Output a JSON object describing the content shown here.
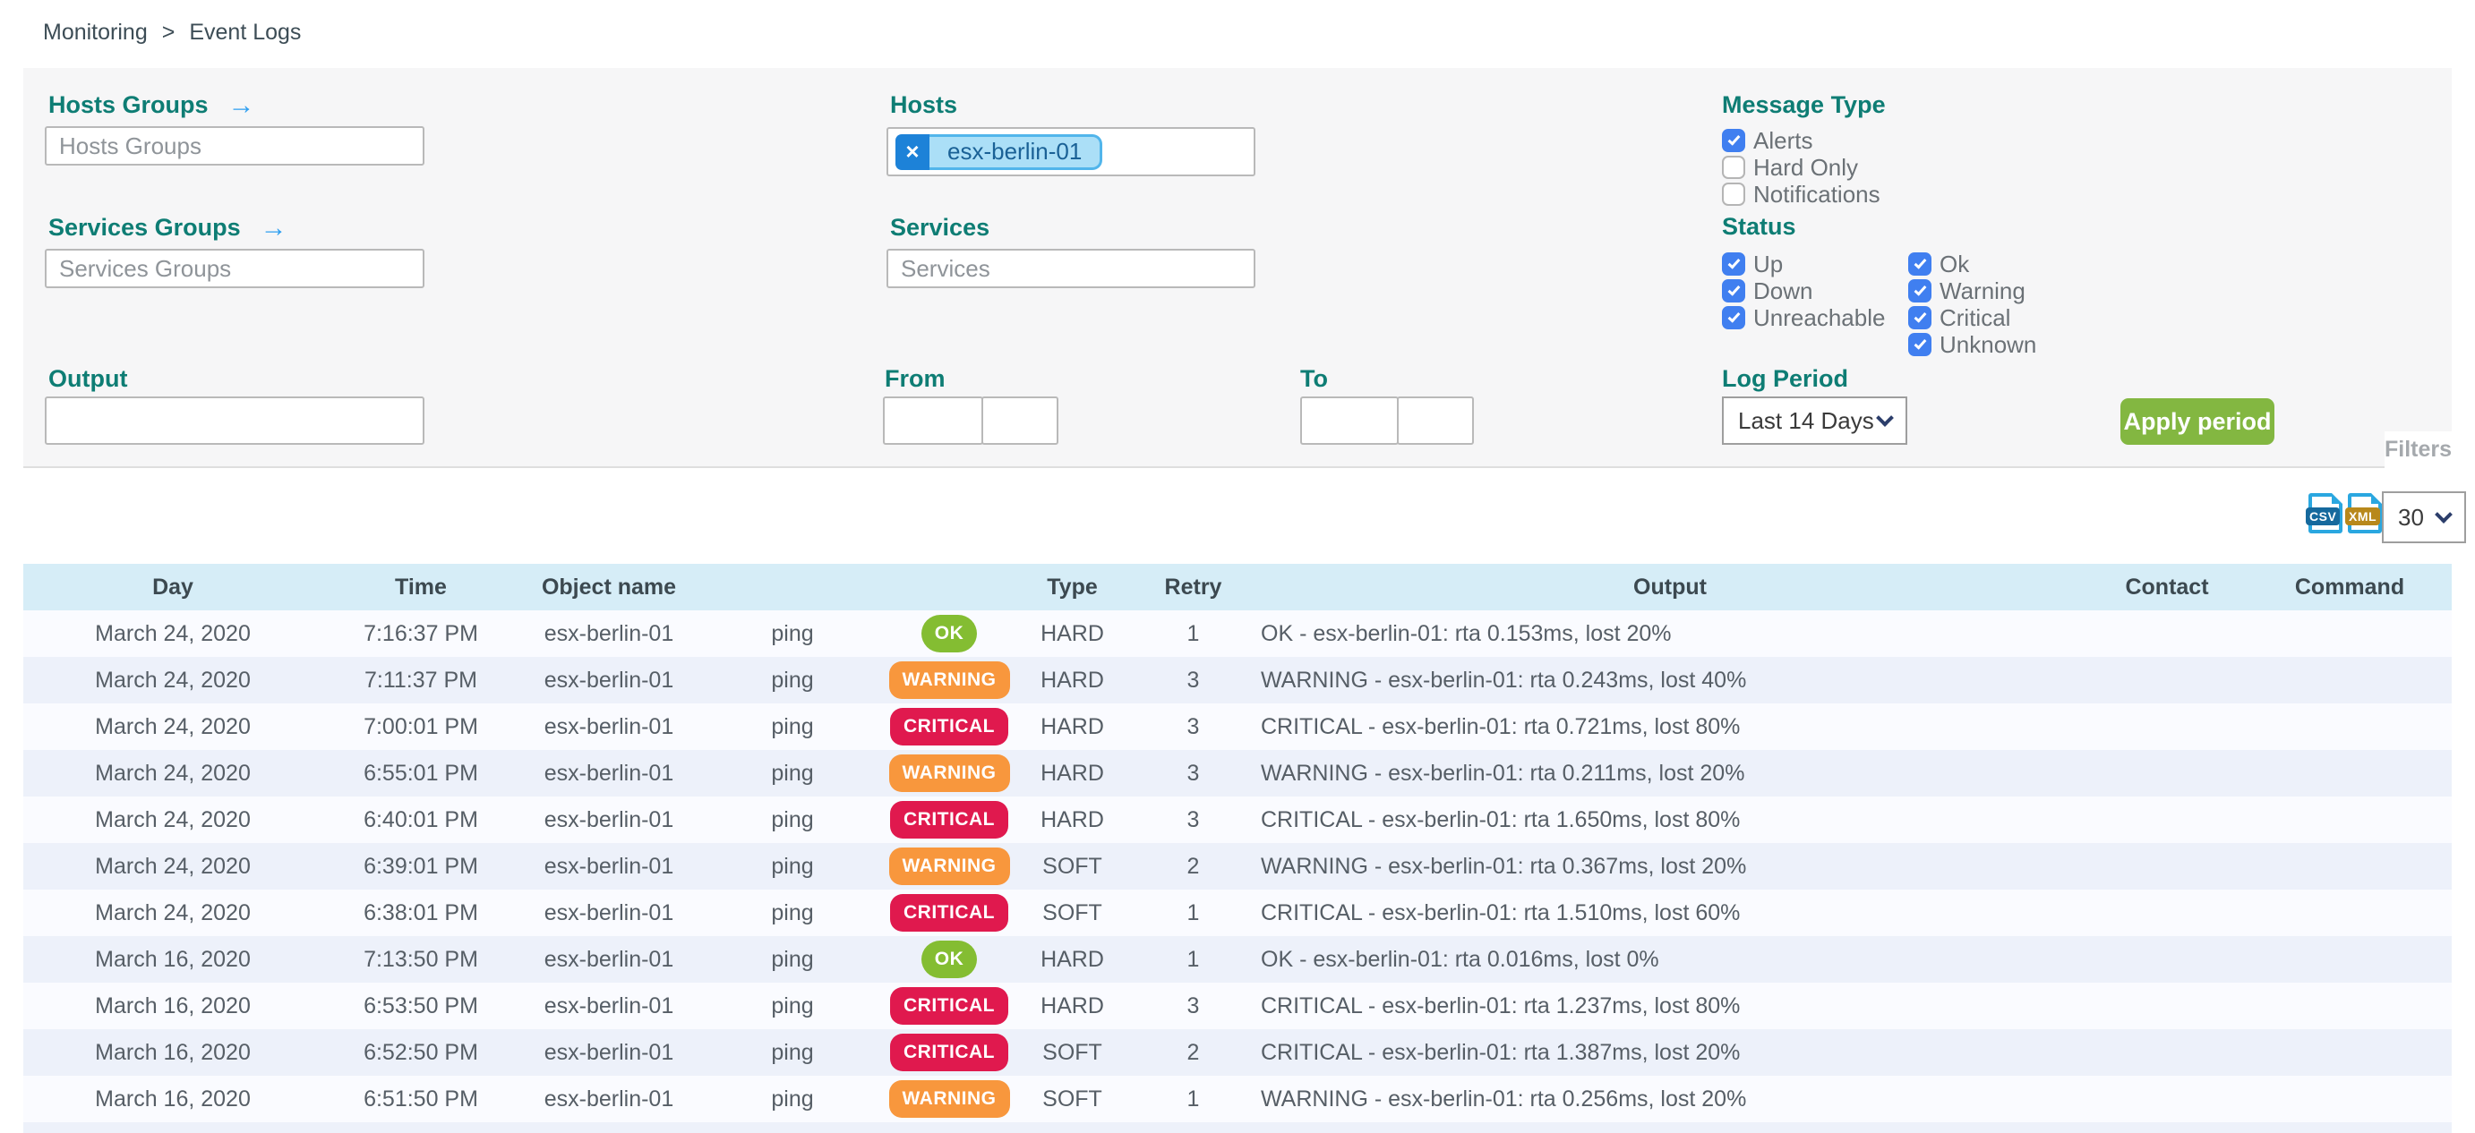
{
  "breadcrumb": {
    "items": [
      "Monitoring",
      "Event Logs"
    ],
    "separator": ">"
  },
  "icons": {
    "arrow_right": "→",
    "close": "×"
  },
  "filters": {
    "hosts_groups": {
      "label": "Hosts Groups",
      "placeholder": "Hosts Groups"
    },
    "services_groups": {
      "label": "Services Groups",
      "placeholder": "Services Groups"
    },
    "hosts": {
      "label": "Hosts",
      "chip": "esx-berlin-01"
    },
    "services": {
      "label": "Services",
      "placeholder": "Services"
    },
    "output": {
      "label": "Output",
      "value": ""
    },
    "from": {
      "label": "From",
      "date": "",
      "time": ""
    },
    "to": {
      "label": "To",
      "date": "",
      "time": ""
    },
    "message_type": {
      "label": "Message Type",
      "options": [
        {
          "label": "Alerts",
          "checked": true
        },
        {
          "label": "Hard Only",
          "checked": false
        },
        {
          "label": "Notifications",
          "checked": false
        }
      ]
    },
    "status": {
      "label": "Status",
      "col1": [
        {
          "label": "Up",
          "checked": true
        },
        {
          "label": "Down",
          "checked": true
        },
        {
          "label": "Unreachable",
          "checked": true
        }
      ],
      "col2": [
        {
          "label": "Ok",
          "checked": true
        },
        {
          "label": "Warning",
          "checked": true
        },
        {
          "label": "Critical",
          "checked": true
        },
        {
          "label": "Unknown",
          "checked": true
        }
      ]
    },
    "log_period": {
      "label": "Log Period",
      "value": "Last 14 Days"
    },
    "apply_button": "Apply period",
    "filters_tab": "Filters"
  },
  "toolbar": {
    "csv_label": "CSV",
    "xml_label": "XML",
    "page_size": "30"
  },
  "table": {
    "columns": [
      {
        "label": "Day",
        "key": "day"
      },
      {
        "label": "Time",
        "key": "time"
      },
      {
        "label": "Object name",
        "key": "object_name"
      },
      {
        "label": "",
        "key": "service"
      },
      {
        "label": "",
        "key": "status"
      },
      {
        "label": "Type",
        "key": "state_type"
      },
      {
        "label": "Retry",
        "key": "retry"
      },
      {
        "label": "Output",
        "key": "output"
      },
      {
        "label": "Contact",
        "key": "contact"
      },
      {
        "label": "Command",
        "key": "command"
      }
    ],
    "rows": [
      {
        "day": "March 24, 2020",
        "time": "7:16:37 PM",
        "object_name": "esx-berlin-01",
        "service": "ping",
        "status": "OK",
        "state_type": "HARD",
        "retry": "1",
        "output": "OK - esx-berlin-01: rta 0.153ms, lost 20%",
        "contact": "",
        "command": ""
      },
      {
        "day": "March 24, 2020",
        "time": "7:11:37 PM",
        "object_name": "esx-berlin-01",
        "service": "ping",
        "status": "WARNING",
        "state_type": "HARD",
        "retry": "3",
        "output": "WARNING - esx-berlin-01: rta 0.243ms, lost 40%",
        "contact": "",
        "command": ""
      },
      {
        "day": "March 24, 2020",
        "time": "7:00:01 PM",
        "object_name": "esx-berlin-01",
        "service": "ping",
        "status": "CRITICAL",
        "state_type": "HARD",
        "retry": "3",
        "output": "CRITICAL - esx-berlin-01: rta 0.721ms, lost 80%",
        "contact": "",
        "command": ""
      },
      {
        "day": "March 24, 2020",
        "time": "6:55:01 PM",
        "object_name": "esx-berlin-01",
        "service": "ping",
        "status": "WARNING",
        "state_type": "HARD",
        "retry": "3",
        "output": "WARNING - esx-berlin-01: rta 0.211ms, lost 20%",
        "contact": "",
        "command": ""
      },
      {
        "day": "March 24, 2020",
        "time": "6:40:01 PM",
        "object_name": "esx-berlin-01",
        "service": "ping",
        "status": "CRITICAL",
        "state_type": "HARD",
        "retry": "3",
        "output": "CRITICAL - esx-berlin-01: rta 1.650ms, lost 80%",
        "contact": "",
        "command": ""
      },
      {
        "day": "March 24, 2020",
        "time": "6:39:01 PM",
        "object_name": "esx-berlin-01",
        "service": "ping",
        "status": "WARNING",
        "state_type": "SOFT",
        "retry": "2",
        "output": "WARNING - esx-berlin-01: rta 0.367ms, lost 20%",
        "contact": "",
        "command": ""
      },
      {
        "day": "March 24, 2020",
        "time": "6:38:01 PM",
        "object_name": "esx-berlin-01",
        "service": "ping",
        "status": "CRITICAL",
        "state_type": "SOFT",
        "retry": "1",
        "output": "CRITICAL - esx-berlin-01: rta 1.510ms, lost 60%",
        "contact": "",
        "command": ""
      },
      {
        "day": "March 16, 2020",
        "time": "7:13:50 PM",
        "object_name": "esx-berlin-01",
        "service": "ping",
        "status": "OK",
        "state_type": "HARD",
        "retry": "1",
        "output": "OK - esx-berlin-01: rta 0.016ms, lost 0%",
        "contact": "",
        "command": ""
      },
      {
        "day": "March 16, 2020",
        "time": "6:53:50 PM",
        "object_name": "esx-berlin-01",
        "service": "ping",
        "status": "CRITICAL",
        "state_type": "HARD",
        "retry": "3",
        "output": "CRITICAL - esx-berlin-01: rta 1.237ms, lost 80%",
        "contact": "",
        "command": ""
      },
      {
        "day": "March 16, 2020",
        "time": "6:52:50 PM",
        "object_name": "esx-berlin-01",
        "service": "ping",
        "status": "CRITICAL",
        "state_type": "SOFT",
        "retry": "2",
        "output": "CRITICAL - esx-berlin-01: rta 1.387ms, lost 20%",
        "contact": "",
        "command": ""
      },
      {
        "day": "March 16, 2020",
        "time": "6:51:50 PM",
        "object_name": "esx-berlin-01",
        "service": "ping",
        "status": "WARNING",
        "state_type": "SOFT",
        "retry": "1",
        "output": "WARNING - esx-berlin-01: rta 0.256ms, lost 20%",
        "contact": "",
        "command": ""
      }
    ]
  },
  "colors": {
    "label_teal": "#0e7d74",
    "arrow_blue": "#2f9ff0",
    "checkbox_blue": "#407ff0",
    "status_ok": "#84bd32",
    "status_warning": "#f8973d",
    "status_critical": "#e0194e",
    "apply_green": "#83b741",
    "table_header_bg": "#d6edf7",
    "row_odd": "#fafbff",
    "row_even": "#edf1fa"
  }
}
